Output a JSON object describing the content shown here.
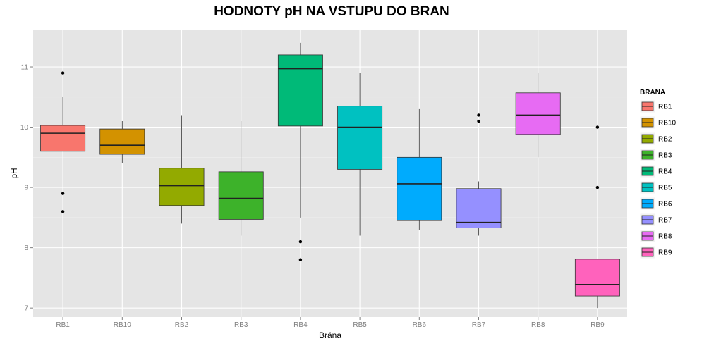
{
  "chart_data": {
    "type": "box",
    "title": "HODNOTY pH NA VSTUPU DO BRAN",
    "xlabel": "Brána",
    "ylabel": "pH",
    "ylim": [
      6.85,
      11.62
    ],
    "yticks": [
      7,
      8,
      9,
      10,
      11
    ],
    "grid": true,
    "legend": {
      "title": "BRANA",
      "position": "right"
    },
    "categories": [
      "RB1",
      "RB10",
      "RB2",
      "RB3",
      "RB4",
      "RB5",
      "RB6",
      "RB7",
      "RB8",
      "RB9"
    ],
    "boxes": [
      {
        "name": "RB1",
        "color": "#F8766D",
        "lower_whisker": 9.6,
        "q1": 9.6,
        "median": 9.9,
        "q3": 10.03,
        "upper_whisker": 10.5,
        "outliers": [
          10.9,
          8.9,
          8.6
        ]
      },
      {
        "name": "RB10",
        "color": "#D39200",
        "lower_whisker": 9.4,
        "q1": 9.55,
        "median": 9.7,
        "q3": 9.97,
        "upper_whisker": 10.1,
        "outliers": []
      },
      {
        "name": "RB2",
        "color": "#93AA00",
        "lower_whisker": 8.4,
        "q1": 8.7,
        "median": 9.03,
        "q3": 9.32,
        "upper_whisker": 10.2,
        "outliers": []
      },
      {
        "name": "RB3",
        "color": "#3DB22A",
        "lower_whisker": 8.2,
        "q1": 8.47,
        "median": 8.82,
        "q3": 9.26,
        "upper_whisker": 10.1,
        "outliers": []
      },
      {
        "name": "RB4",
        "color": "#00BA78",
        "lower_whisker": 8.5,
        "q1": 10.02,
        "median": 10.97,
        "q3": 11.2,
        "upper_whisker": 11.4,
        "outliers": [
          8.1,
          7.8
        ]
      },
      {
        "name": "RB5",
        "color": "#00C1C1",
        "lower_whisker": 8.2,
        "q1": 9.3,
        "median": 10.0,
        "q3": 10.35,
        "upper_whisker": 10.9,
        "outliers": []
      },
      {
        "name": "RB6",
        "color": "#00ABFD",
        "lower_whisker": 8.3,
        "q1": 8.45,
        "median": 9.06,
        "q3": 9.5,
        "upper_whisker": 10.3,
        "outliers": []
      },
      {
        "name": "RB7",
        "color": "#9590FF",
        "lower_whisker": 8.2,
        "q1": 8.33,
        "median": 8.42,
        "q3": 8.98,
        "upper_whisker": 9.1,
        "outliers": [
          10.2,
          10.1
        ]
      },
      {
        "name": "RB8",
        "color": "#E76BF3",
        "lower_whisker": 9.5,
        "q1": 9.88,
        "median": 10.2,
        "q3": 10.57,
        "upper_whisker": 10.9,
        "outliers": []
      },
      {
        "name": "RB9",
        "color": "#FF62BC",
        "lower_whisker": 7.0,
        "q1": 7.2,
        "median": 7.39,
        "q3": 7.81,
        "upper_whisker": 7.81,
        "outliers": [
          10.0,
          9.0
        ]
      }
    ]
  }
}
